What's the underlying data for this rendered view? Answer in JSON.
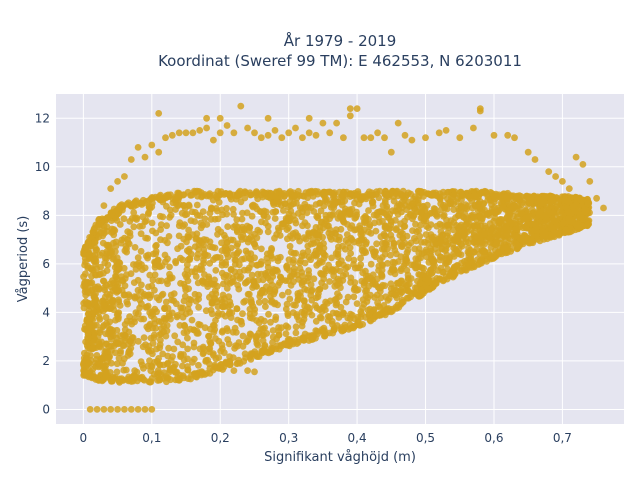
{
  "chart_data": {
    "type": "scatter",
    "title": "År 1979 - 2019",
    "subtitle": "Koordinat (Sweref 99 TM): E 462553, N 6203011",
    "xlabel": "Signifikant våghöjd (m)",
    "ylabel": "Vågperiod (s)",
    "xlim": [
      -0.04,
      0.79
    ],
    "ylim": [
      -0.6,
      13.0
    ],
    "xticks": [
      0,
      0.1,
      0.2,
      0.3,
      0.4,
      0.5,
      0.6,
      0.7
    ],
    "xtick_labels": [
      "0",
      "0,1",
      "0,2",
      "0,3",
      "0,4",
      "0,5",
      "0,6",
      "0,7"
    ],
    "yticks": [
      0,
      2,
      4,
      6,
      8,
      10,
      12
    ],
    "ytick_labels": [
      "0",
      "2",
      "4",
      "6",
      "8",
      "10",
      "12"
    ],
    "grid": true,
    "plot_background": "#e5e5f0",
    "grid_color": "#ffffff",
    "marker_color": "#d4a21e",
    "density_envelope": [
      {
        "x": 0.0,
        "y_min": 1.4,
        "y_max": 6.6
      },
      {
        "x": 0.02,
        "y_min": 1.2,
        "y_max": 7.8
      },
      {
        "x": 0.05,
        "y_min": 1.1,
        "y_max": 8.4
      },
      {
        "x": 0.1,
        "y_min": 1.1,
        "y_max": 8.8
      },
      {
        "x": 0.15,
        "y_min": 1.2,
        "y_max": 9.0
      },
      {
        "x": 0.2,
        "y_min": 1.6,
        "y_max": 9.0
      },
      {
        "x": 0.25,
        "y_min": 2.1,
        "y_max": 9.0
      },
      {
        "x": 0.3,
        "y_min": 2.6,
        "y_max": 9.0
      },
      {
        "x": 0.35,
        "y_min": 3.0,
        "y_max": 9.0
      },
      {
        "x": 0.4,
        "y_min": 3.4,
        "y_max": 9.0
      },
      {
        "x": 0.45,
        "y_min": 4.0,
        "y_max": 9.0
      },
      {
        "x": 0.5,
        "y_min": 4.8,
        "y_max": 9.0
      },
      {
        "x": 0.55,
        "y_min": 5.6,
        "y_max": 9.0
      },
      {
        "x": 0.6,
        "y_min": 6.2,
        "y_max": 9.0
      },
      {
        "x": 0.65,
        "y_min": 6.8,
        "y_max": 8.8
      },
      {
        "x": 0.7,
        "y_min": 7.2,
        "y_max": 8.8
      },
      {
        "x": 0.74,
        "y_min": 7.6,
        "y_max": 8.7
      }
    ],
    "points": [
      {
        "x": 0.007,
        "y": 3.1
      },
      {
        "x": 0.008,
        "y": 1.9
      },
      {
        "x": 0.009,
        "y": 1.6
      },
      {
        "x": 0.01,
        "y": 0
      },
      {
        "x": 0.02,
        "y": 0
      },
      {
        "x": 0.03,
        "y": 0
      },
      {
        "x": 0.04,
        "y": 0
      },
      {
        "x": 0.05,
        "y": 0
      },
      {
        "x": 0.06,
        "y": 0
      },
      {
        "x": 0.07,
        "y": 0
      },
      {
        "x": 0.08,
        "y": 0
      },
      {
        "x": 0.09,
        "y": 0
      },
      {
        "x": 0.1,
        "y": 0
      },
      {
        "x": 0.03,
        "y": 8.4
      },
      {
        "x": 0.04,
        "y": 9.1
      },
      {
        "x": 0.05,
        "y": 9.4
      },
      {
        "x": 0.06,
        "y": 9.6
      },
      {
        "x": 0.07,
        "y": 10.3
      },
      {
        "x": 0.08,
        "y": 10.8
      },
      {
        "x": 0.09,
        "y": 10.4
      },
      {
        "x": 0.1,
        "y": 10.9
      },
      {
        "x": 0.11,
        "y": 10.6
      },
      {
        "x": 0.12,
        "y": 11.2
      },
      {
        "x": 0.13,
        "y": 11.3
      },
      {
        "x": 0.14,
        "y": 11.4
      },
      {
        "x": 0.15,
        "y": 11.4
      },
      {
        "x": 0.16,
        "y": 11.4
      },
      {
        "x": 0.17,
        "y": 11.5
      },
      {
        "x": 0.18,
        "y": 11.6
      },
      {
        "x": 0.19,
        "y": 11.1
      },
      {
        "x": 0.2,
        "y": 11.4
      },
      {
        "x": 0.21,
        "y": 11.7
      },
      {
        "x": 0.22,
        "y": 11.4
      },
      {
        "x": 0.23,
        "y": 12.5
      },
      {
        "x": 0.24,
        "y": 11.6
      },
      {
        "x": 0.25,
        "y": 11.4
      },
      {
        "x": 0.26,
        "y": 11.2
      },
      {
        "x": 0.27,
        "y": 11.3
      },
      {
        "x": 0.28,
        "y": 11.5
      },
      {
        "x": 0.29,
        "y": 11.2
      },
      {
        "x": 0.3,
        "y": 11.4
      },
      {
        "x": 0.31,
        "y": 11.6
      },
      {
        "x": 0.32,
        "y": 11.2
      },
      {
        "x": 0.33,
        "y": 11.4
      },
      {
        "x": 0.34,
        "y": 11.3
      },
      {
        "x": 0.35,
        "y": 11.8
      },
      {
        "x": 0.36,
        "y": 11.4
      },
      {
        "x": 0.37,
        "y": 11.8
      },
      {
        "x": 0.38,
        "y": 11.2
      },
      {
        "x": 0.39,
        "y": 12.1
      },
      {
        "x": 0.4,
        "y": 12.4
      },
      {
        "x": 0.41,
        "y": 11.2
      },
      {
        "x": 0.42,
        "y": 11.2
      },
      {
        "x": 0.43,
        "y": 11.4
      },
      {
        "x": 0.44,
        "y": 11.2
      },
      {
        "x": 0.45,
        "y": 10.6
      },
      {
        "x": 0.47,
        "y": 11.3
      },
      {
        "x": 0.48,
        "y": 11.1
      },
      {
        "x": 0.5,
        "y": 11.2
      },
      {
        "x": 0.52,
        "y": 11.4
      },
      {
        "x": 0.53,
        "y": 11.5
      },
      {
        "x": 0.55,
        "y": 11.2
      },
      {
        "x": 0.57,
        "y": 11.6
      },
      {
        "x": 0.58,
        "y": 12.4
      },
      {
        "x": 0.6,
        "y": 11.3
      },
      {
        "x": 0.62,
        "y": 11.3
      },
      {
        "x": 0.63,
        "y": 11.2
      },
      {
        "x": 0.65,
        "y": 10.6
      },
      {
        "x": 0.66,
        "y": 10.3
      },
      {
        "x": 0.68,
        "y": 9.8
      },
      {
        "x": 0.69,
        "y": 9.6
      },
      {
        "x": 0.7,
        "y": 9.4
      },
      {
        "x": 0.71,
        "y": 9.1
      },
      {
        "x": 0.72,
        "y": 10.4
      },
      {
        "x": 0.73,
        "y": 10.1
      },
      {
        "x": 0.74,
        "y": 9.4
      },
      {
        "x": 0.75,
        "y": 8.7
      },
      {
        "x": 0.76,
        "y": 8.3
      },
      {
        "x": 0.2,
        "y": 12.0
      },
      {
        "x": 0.33,
        "y": 12.0
      },
      {
        "x": 0.39,
        "y": 12.4
      },
      {
        "x": 0.11,
        "y": 12.2
      },
      {
        "x": 0.18,
        "y": 12.0
      },
      {
        "x": 0.27,
        "y": 12.0
      },
      {
        "x": 0.46,
        "y": 11.8
      },
      {
        "x": 0.58,
        "y": 12.3
      },
      {
        "x": 0.22,
        "y": 1.6
      },
      {
        "x": 0.24,
        "y": 1.6
      },
      {
        "x": 0.25,
        "y": 1.55
      }
    ]
  }
}
